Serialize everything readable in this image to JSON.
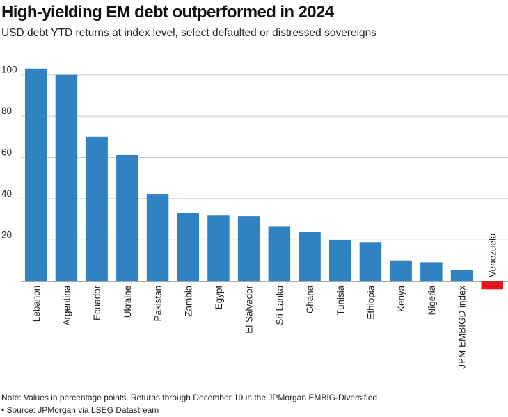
{
  "title": "High-yielding EM debt outperformed in 2024",
  "subtitle": "USD debt YTD returns at index level, select defaulted or distressed sovereigns",
  "note": "Note: Values in percentage points. Returns through December 19 in the JPMorgan EMBIG-Diversified",
  "source": "• Source: JPMorgan via LSEG Datastream",
  "colors": {
    "positive": "#3182c0",
    "negative": "#e3171c",
    "grid": "#cccccc",
    "axis": "#555555"
  },
  "chart_data": {
    "type": "bar",
    "title": "High-yielding EM debt outperformed in 2024",
    "xlabel": "",
    "ylabel": "",
    "ylim": [
      -5,
      105
    ],
    "yticks": [
      20,
      40,
      60,
      80,
      100
    ],
    "grid": true,
    "categories": [
      "Lebanon",
      "Argentina",
      "Ecuador",
      "Ukraine",
      "Pakistan",
      "Zambia",
      "Egypt",
      "El Salvador",
      "Sri Lanka",
      "Ghana",
      "Tunisia",
      "Ethiopia",
      "Kenya",
      "Nigeria",
      "JPM EMBIGD index",
      "Venezuela"
    ],
    "values": [
      103,
      100,
      70,
      61.2,
      42.3,
      33,
      31.8,
      31.5,
      26.7,
      23.8,
      20.1,
      19,
      10.1,
      9.2,
      5.6,
      -3.9
    ]
  }
}
